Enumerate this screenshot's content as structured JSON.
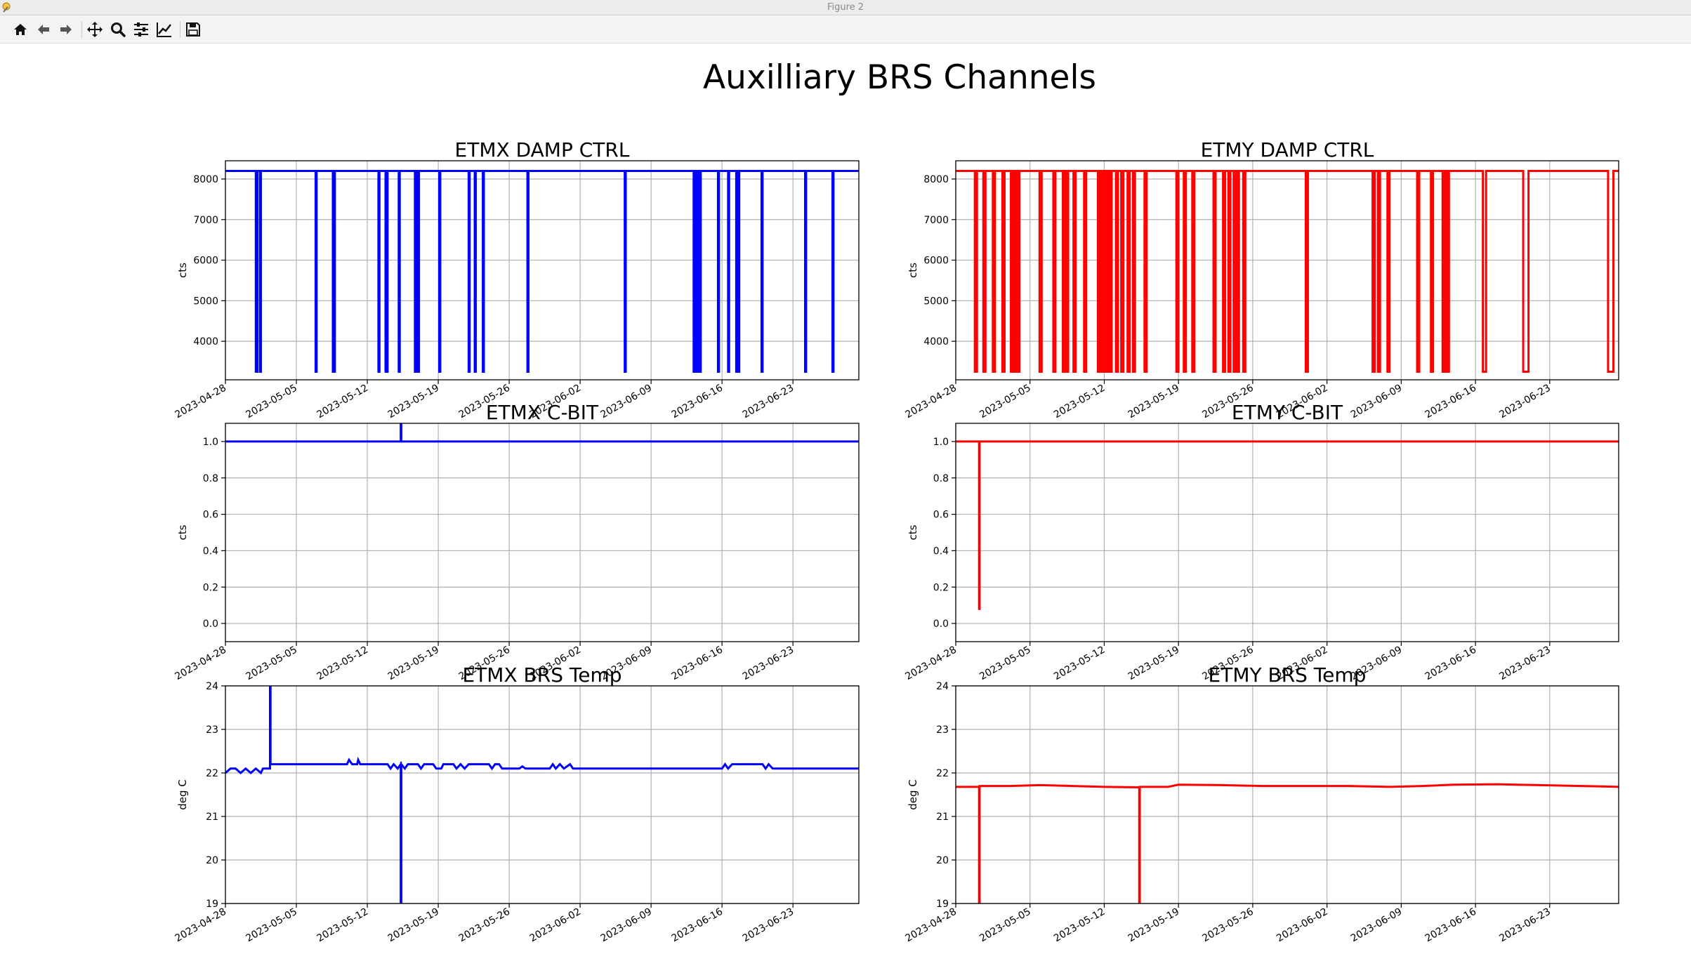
{
  "window": {
    "title": "Figure 2"
  },
  "toolbar": {
    "items": [
      {
        "name": "home-icon"
      },
      {
        "name": "back-arrow-icon"
      },
      {
        "name": "forward-arrow-icon"
      },
      {
        "name": "pan-icon"
      },
      {
        "name": "zoom-icon"
      },
      {
        "name": "subplots-icon"
      },
      {
        "name": "edit-axes-icon"
      },
      {
        "name": "save-icon"
      }
    ]
  },
  "figure": {
    "suptitle": "Auxilliary BRS Channels"
  },
  "colors": {
    "etmx": "#0000ff",
    "etmy": "#ff0000",
    "grid": "#b0b0b0"
  },
  "date_ticks": [
    "2023-04-28",
    "2023-05-05",
    "2023-05-12",
    "2023-05-19",
    "2023-05-26",
    "2023-06-02",
    "2023-06-09",
    "2023-06-16",
    "2023-06-23"
  ],
  "chart_data": [
    {
      "type": "line",
      "title": "ETMX DAMP CTRL",
      "xlabel": "",
      "ylabel": "cts",
      "xlim": [
        "2023-04-28",
        "2023-06-29.5"
      ],
      "ylim": [
        3050,
        8450
      ],
      "yticks": [
        4000,
        5000,
        6000,
        7000,
        8000
      ],
      "ytick_labels": [
        "4000",
        "5000",
        "6000",
        "7000",
        "8000"
      ],
      "grid": true,
      "series": [
        {
          "color": "#0000ff",
          "kind": "toggle",
          "high": 8200,
          "low": 3250,
          "drops": [
            [
              "2023-05-01",
              "2023-05-01.15"
            ],
            [
              "2023-05-01.4",
              "2023-05-01.5"
            ],
            [
              "2023-05-06.9",
              "2023-05-07"
            ],
            [
              "2023-05-08.6",
              "2023-05-08.8"
            ],
            [
              "2023-05-13.1",
              "2023-05-13.2"
            ],
            [
              "2023-05-13.8",
              "2023-05-14"
            ],
            [
              "2023-05-15.1",
              "2023-05-15.2"
            ],
            [
              "2023-05-16.7",
              "2023-05-16.85"
            ],
            [
              "2023-05-16.95",
              "2023-05-17.1"
            ],
            [
              "2023-05-19.1",
              "2023-05-19.2"
            ],
            [
              "2023-05-22",
              "2023-05-22.1"
            ],
            [
              "2023-05-22.6",
              "2023-05-22.7"
            ],
            [
              "2023-05-23.4",
              "2023-05-23.5"
            ],
            [
              "2023-05-27.8",
              "2023-05-27.9"
            ],
            [
              "2023-06-06.4",
              "2023-06-06.5"
            ],
            [
              "2023-06-13.2",
              "2023-06-13.3"
            ],
            [
              "2023-06-13.5",
              "2023-06-13.6"
            ],
            [
              "2023-06-13.8",
              "2023-06-13.9"
            ],
            [
              "2023-06-15.6",
              "2023-06-15.7"
            ],
            [
              "2023-06-16.6",
              "2023-06-16.7"
            ],
            [
              "2023-06-17.4",
              "2023-06-17.5"
            ],
            [
              "2023-06-17.6",
              "2023-06-17.7"
            ],
            [
              "2023-06-19.9",
              "2023-06-20"
            ],
            [
              "2023-06-24.2",
              "2023-06-24.3"
            ],
            [
              "2023-06-26.9",
              "2023-06-27"
            ]
          ]
        }
      ]
    },
    {
      "type": "line",
      "title": "ETMY DAMP CTRL",
      "xlabel": "",
      "ylabel": "cts",
      "xlim": [
        "2023-04-28",
        "2023-06-29.5"
      ],
      "ylim": [
        3050,
        8450
      ],
      "yticks": [
        4000,
        5000,
        6000,
        7000,
        8000
      ],
      "ytick_labels": [
        "4000",
        "5000",
        "6000",
        "7000",
        "8000"
      ],
      "grid": true,
      "series": [
        {
          "color": "#ff0000",
          "kind": "toggle",
          "high": 8200,
          "low": 3250,
          "drops": [
            [
              "2023-04-29.8",
              "2023-04-30"
            ],
            [
              "2023-04-30.6",
              "2023-04-30.8"
            ],
            [
              "2023-05-01.5",
              "2023-05-01.7"
            ],
            [
              "2023-05-02.4",
              "2023-05-02.6"
            ],
            [
              "2023-05-03.2",
              "2023-05-03.4"
            ],
            [
              "2023-05-03.5",
              "2023-05-03.7"
            ],
            [
              "2023-05-03.8",
              "2023-05-04"
            ],
            [
              "2023-05-05.9",
              "2023-05-06.1"
            ],
            [
              "2023-05-07.2",
              "2023-05-07.4"
            ],
            [
              "2023-05-08.1",
              "2023-05-08.2"
            ],
            [
              "2023-05-08.4",
              "2023-05-08.6"
            ],
            [
              "2023-05-09.1",
              "2023-05-09.3"
            ],
            [
              "2023-05-10.1",
              "2023-05-10.3"
            ],
            [
              "2023-05-11.4",
              "2023-05-11.6"
            ],
            [
              "2023-05-11.7",
              "2023-05-11.9"
            ],
            [
              "2023-05-12.1",
              "2023-05-12.3"
            ],
            [
              "2023-05-12.5",
              "2023-05-12.7"
            ],
            [
              "2023-05-13.1",
              "2023-05-13.3"
            ],
            [
              "2023-05-13.6",
              "2023-05-13.8"
            ],
            [
              "2023-05-14.2",
              "2023-05-14.4"
            ],
            [
              "2023-05-14.7",
              "2023-05-14.9"
            ],
            [
              "2023-05-15.8",
              "2023-05-16"
            ],
            [
              "2023-05-18.8",
              "2023-05-19"
            ],
            [
              "2023-05-19.5",
              "2023-05-19.7"
            ],
            [
              "2023-05-20.3",
              "2023-05-20.5"
            ],
            [
              "2023-05-22.3",
              "2023-05-22.5"
            ],
            [
              "2023-05-23.2",
              "2023-05-23.4"
            ],
            [
              "2023-05-23.7",
              "2023-05-23.9"
            ],
            [
              "2023-05-24.2",
              "2023-05-24.4"
            ],
            [
              "2023-05-24.5",
              "2023-05-24.7"
            ],
            [
              "2023-05-25.1",
              "2023-05-25.3"
            ],
            [
              "2023-05-31",
              "2023-05-31.2"
            ],
            [
              "2023-06-06.3",
              "2023-06-06.5"
            ],
            [
              "2023-06-06.8",
              "2023-06-07"
            ],
            [
              "2023-06-07.7",
              "2023-06-07.9"
            ],
            [
              "2023-06-10.5",
              "2023-06-10.7"
            ],
            [
              "2023-06-11.8",
              "2023-06-12"
            ],
            [
              "2023-06-12.9",
              "2023-06-13.1"
            ],
            [
              "2023-06-13.3",
              "2023-06-13.5"
            ],
            [
              "2023-06-16.7",
              "2023-06-17"
            ],
            [
              "2023-06-20.5",
              "2023-06-21"
            ],
            [
              "2023-06-28.5",
              "2023-06-29"
            ]
          ]
        }
      ]
    },
    {
      "type": "line",
      "title": "ETMX C-BIT",
      "xlabel": "",
      "ylabel": "cts",
      "xlim": [
        "2023-04-28",
        "2023-06-29.5"
      ],
      "ylim": [
        -0.1,
        1.1
      ],
      "yticks": [
        0,
        0.2,
        0.4,
        0.6,
        0.8,
        1.0
      ],
      "ytick_labels": [
        "0.0",
        "0.2",
        "0.4",
        "0.6",
        "0.8",
        "1.0"
      ],
      "grid": true,
      "series": [
        {
          "color": "#0000ff",
          "kind": "points",
          "points": [
            [
              "2023-04-28",
              1.0
            ],
            [
              "2023-05-15.3",
              1.0
            ],
            [
              "2023-05-15.3",
              1.1
            ],
            [
              "2023-05-15.35",
              1.1
            ],
            [
              "2023-05-15.35",
              1.0
            ],
            [
              "2023-06-29.5",
              1.0
            ]
          ]
        }
      ]
    },
    {
      "type": "line",
      "title": "ETMY C-BIT",
      "xlabel": "",
      "ylabel": "cts",
      "xlim": [
        "2023-04-28",
        "2023-06-29.5"
      ],
      "ylim": [
        -0.1,
        1.1
      ],
      "yticks": [
        0,
        0.2,
        0.4,
        0.6,
        0.8,
        1.0
      ],
      "ytick_labels": [
        "0.0",
        "0.2",
        "0.4",
        "0.6",
        "0.8",
        "1.0"
      ],
      "grid": true,
      "series": [
        {
          "color": "#ff0000",
          "kind": "points",
          "points": [
            [
              "2023-04-28",
              1.0
            ],
            [
              "2023-04-30.2",
              1.0
            ],
            [
              "2023-04-30.2",
              0.08
            ],
            [
              "2023-04-30.25",
              0.08
            ],
            [
              "2023-04-30.25",
              1.0
            ],
            [
              "2023-06-29.5",
              1.0
            ]
          ]
        }
      ]
    },
    {
      "type": "line",
      "title": "ETMX BRS Temp",
      "xlabel": "",
      "ylabel": "deg C",
      "xlim": [
        "2023-04-28",
        "2023-06-29.5"
      ],
      "ylim": [
        19,
        24
      ],
      "yticks": [
        19,
        20,
        21,
        22,
        23,
        24
      ],
      "ytick_labels": [
        "19",
        "20",
        "21",
        "22",
        "23",
        "24"
      ],
      "grid": true,
      "series": [
        {
          "color": "#0000ff",
          "kind": "points",
          "points": [
            [
              "2023-04-28",
              22.0
            ],
            [
              "2023-04-28.5",
              22.1
            ],
            [
              "2023-04-29",
              22.1
            ],
            [
              "2023-04-29.5",
              22.0
            ],
            [
              "2023-04-30",
              22.1
            ],
            [
              "2023-04-30.5",
              22.0
            ],
            [
              "2023-05-01",
              22.1
            ],
            [
              "2023-05-01.5",
              22.0
            ],
            [
              "2023-05-01.7",
              22.1
            ],
            [
              "2023-05-02.4",
              22.1
            ],
            [
              "2023-05-02.4",
              24.0
            ],
            [
              "2023-05-02.45",
              24.0
            ],
            [
              "2023-05-02.45",
              22.2
            ],
            [
              "2023-05-10",
              22.2
            ],
            [
              "2023-05-10.2",
              22.3
            ],
            [
              "2023-05-10.5",
              22.2
            ],
            [
              "2023-05-11",
              22.2
            ],
            [
              "2023-05-11.1",
              22.3
            ],
            [
              "2023-05-11.3",
              22.2
            ],
            [
              "2023-05-14",
              22.2
            ],
            [
              "2023-05-14.3",
              22.1
            ],
            [
              "2023-05-14.6",
              22.2
            ],
            [
              "2023-05-15",
              22.1
            ],
            [
              "2023-05-15.3",
              22.2
            ],
            [
              "2023-05-15.3",
              19.0
            ],
            [
              "2023-05-15.35",
              19.0
            ],
            [
              "2023-05-15.35",
              22.2
            ],
            [
              "2023-05-15.7",
              22.1
            ],
            [
              "2023-05-16",
              22.2
            ],
            [
              "2023-05-17",
              22.2
            ],
            [
              "2023-05-17.3",
              22.1
            ],
            [
              "2023-05-17.6",
              22.2
            ],
            [
              "2023-05-18.5",
              22.2
            ],
            [
              "2023-05-18.8",
              22.1
            ],
            [
              "2023-05-19.3",
              22.1
            ],
            [
              "2023-05-19.5",
              22.2
            ],
            [
              "2023-05-20.5",
              22.2
            ],
            [
              "2023-05-20.8",
              22.1
            ],
            [
              "2023-05-21.2",
              22.2
            ],
            [
              "2023-05-21.6",
              22.1
            ],
            [
              "2023-05-22",
              22.2
            ],
            [
              "2023-05-24",
              22.2
            ],
            [
              "2023-05-24.3",
              22.1
            ],
            [
              "2023-05-24.6",
              22.2
            ],
            [
              "2023-05-25",
              22.2
            ],
            [
              "2023-05-25.3",
              22.1
            ],
            [
              "2023-05-27",
              22.1
            ],
            [
              "2023-05-27.3",
              22.15
            ],
            [
              "2023-05-27.6",
              22.1
            ],
            [
              "2023-05-30",
              22.1
            ],
            [
              "2023-05-30.3",
              22.2
            ],
            [
              "2023-05-30.6",
              22.1
            ],
            [
              "2023-05-31",
              22.2
            ],
            [
              "2023-05-31.4",
              22.1
            ],
            [
              "2023-06-01",
              22.2
            ],
            [
              "2023-06-01.3",
              22.1
            ],
            [
              "2023-06-16",
              22.1
            ],
            [
              "2023-06-16.3",
              22.2
            ],
            [
              "2023-06-16.6",
              22.1
            ],
            [
              "2023-06-17",
              22.2
            ],
            [
              "2023-06-20",
              22.2
            ],
            [
              "2023-06-20.3",
              22.1
            ],
            [
              "2023-06-20.6",
              22.2
            ],
            [
              "2023-06-21",
              22.1
            ],
            [
              "2023-06-29.5",
              22.1
            ]
          ]
        }
      ]
    },
    {
      "type": "line",
      "title": "ETMY BRS Temp",
      "xlabel": "",
      "ylabel": "deg C",
      "xlim": [
        "2023-04-28",
        "2023-06-29.5"
      ],
      "ylim": [
        19,
        24
      ],
      "yticks": [
        19,
        20,
        21,
        22,
        23,
        24
      ],
      "ytick_labels": [
        "19",
        "20",
        "21",
        "22",
        "23",
        "24"
      ],
      "grid": true,
      "series": [
        {
          "color": "#ff0000",
          "kind": "points",
          "points": [
            [
              "2023-04-28",
              21.68
            ],
            [
              "2023-04-30.2",
              21.68
            ],
            [
              "2023-04-30.2",
              19.0
            ],
            [
              "2023-04-30.25",
              19.0
            ],
            [
              "2023-04-30.25",
              21.7
            ],
            [
              "2023-05-03",
              21.7
            ],
            [
              "2023-05-06",
              21.72
            ],
            [
              "2023-05-09",
              21.7
            ],
            [
              "2023-05-12",
              21.68
            ],
            [
              "2023-05-15.3",
              21.67
            ],
            [
              "2023-05-15.3",
              19.0
            ],
            [
              "2023-05-15.35",
              19.0
            ],
            [
              "2023-05-15.35",
              21.68
            ],
            [
              "2023-05-18",
              21.68
            ],
            [
              "2023-05-19",
              21.73
            ],
            [
              "2023-05-23",
              21.72
            ],
            [
              "2023-05-27",
              21.7
            ],
            [
              "2023-05-31",
              21.7
            ],
            [
              "2023-06-04",
              21.7
            ],
            [
              "2023-06-08",
              21.68
            ],
            [
              "2023-06-11",
              21.7
            ],
            [
              "2023-06-14",
              21.73
            ],
            [
              "2023-06-18",
              21.74
            ],
            [
              "2023-06-22",
              21.72
            ],
            [
              "2023-06-26",
              21.7
            ],
            [
              "2023-06-29.5",
              21.68
            ]
          ]
        }
      ]
    }
  ]
}
